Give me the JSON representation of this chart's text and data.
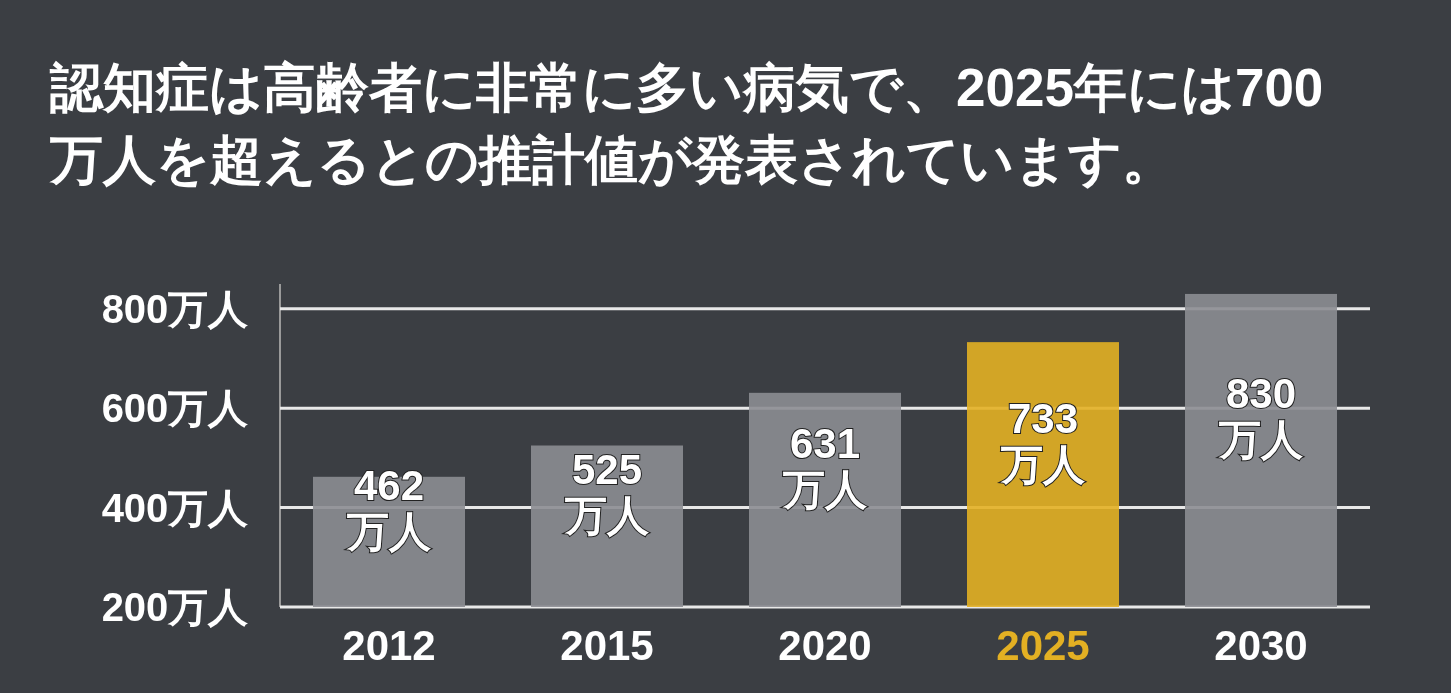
{
  "chart_data": {
    "type": "bar",
    "title": "認知症は高齢者に非常に多い病気で、2025年には700万人を超えるとの推計値が発表されています。",
    "categories": [
      "2012",
      "2015",
      "2020",
      "2025",
      "2030"
    ],
    "values": [
      462,
      525,
      631,
      733,
      830
    ],
    "value_labels": [
      "462万人",
      "525万人",
      "631万人",
      "733万人",
      "830万人"
    ],
    "colors": [
      "#8c8d92",
      "#8c8d92",
      "#8c8d92",
      "#e3b023",
      "#8c8d92"
    ],
    "ylim": [
      200,
      850
    ],
    "yticks": [
      {
        "value": 200,
        "label": "200万人"
      },
      {
        "value": 400,
        "label": "400万人"
      },
      {
        "value": 600,
        "label": "600万人"
      },
      {
        "value": 800,
        "label": "800万人"
      }
    ],
    "grid": "y"
  }
}
